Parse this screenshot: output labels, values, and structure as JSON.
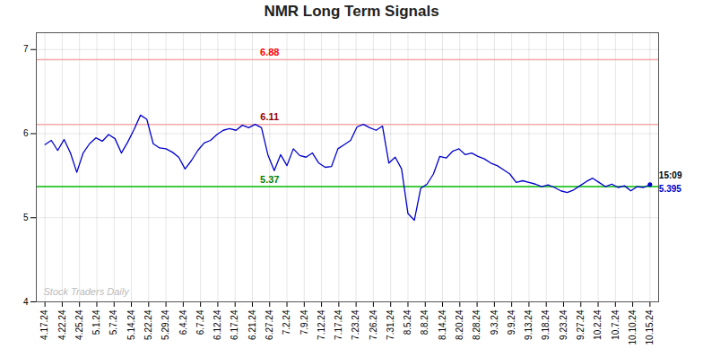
{
  "chart_data": {
    "type": "line",
    "title": "NMR Long Term Signals",
    "x": [
      0,
      0.368421,
      0.736842,
      1.105263,
      1.473684,
      1.842105,
      2.210526,
      2.578947,
      2.947368,
      3.315789,
      3.684211,
      4.052632,
      4.421053,
      4.789474,
      5.157895,
      5.526316,
      5.894737,
      6.263158,
      6.631579,
      7,
      7.368421,
      7.736842,
      8.105263,
      8.473684,
      8.842105,
      9.210526,
      9.578947,
      9.947368,
      10.315789,
      10.684211,
      11.052632,
      11.421053,
      11.789474,
      12.157895,
      12.526316,
      12.894737,
      13.263158,
      13.631579,
      14,
      14.368421,
      14.736842,
      15.105263,
      15.473684,
      15.842105,
      16.210526,
      16.578947,
      16.947368,
      17.315789,
      17.684211,
      18.052632,
      18.421053,
      18.789474,
      19.157895,
      19.526316,
      19.894737,
      20.263158,
      20.631579,
      21,
      21.368421,
      21.736842,
      22.105263,
      22.473684,
      22.842105,
      23.210526,
      23.578947,
      23.947368,
      24.315789,
      24.684211,
      25.052632,
      25.421053,
      25.789474,
      26.157895,
      26.526316,
      26.894737,
      27.263158,
      27.631579,
      28,
      28.368421,
      28.736842,
      29.105263,
      29.473684,
      29.842105,
      30.210526,
      30.578947,
      30.947368,
      31.315789,
      31.684211,
      32.052632,
      32.421053,
      32.789474,
      33.157895,
      33.526316,
      33.894737,
      34.263158,
      34.631579,
      35
    ],
    "values": [
      5.87,
      5.92,
      5.8,
      5.93,
      5.77,
      5.54,
      5.77,
      5.88,
      5.95,
      5.91,
      5.99,
      5.94,
      5.77,
      5.9,
      6.05,
      6.22,
      6.17,
      5.88,
      5.83,
      5.82,
      5.78,
      5.72,
      5.58,
      5.68,
      5.8,
      5.89,
      5.92,
      5.99,
      6.04,
      6.06,
      6.04,
      6.1,
      6.07,
      6.11,
      6.07,
      5.75,
      5.56,
      5.75,
      5.62,
      5.82,
      5.74,
      5.72,
      5.77,
      5.65,
      5.6,
      5.61,
      5.82,
      5.87,
      5.92,
      6.08,
      6.11,
      6.07,
      6.04,
      6.09,
      5.65,
      5.72,
      5.58,
      5.05,
      4.97,
      5.35,
      5.4,
      5.52,
      5.73,
      5.71,
      5.79,
      5.82,
      5.75,
      5.77,
      5.73,
      5.7,
      5.65,
      5.62,
      5.57,
      5.52,
      5.42,
      5.44,
      5.42,
      5.4,
      5.37,
      5.39,
      5.36,
      5.32,
      5.3,
      5.33,
      5.38,
      5.43,
      5.47,
      5.42,
      5.37,
      5.4,
      5.36,
      5.38,
      5.32,
      5.37,
      5.36,
      5.395
    ],
    "color": "#0000cc",
    "xlim": [
      -0.5,
      35.5
    ],
    "xticks": [
      {
        "value": 0,
        "label": "4.17.24"
      },
      {
        "value": 1,
        "label": "4.22.24"
      },
      {
        "value": 2,
        "label": "4.25.24"
      },
      {
        "value": 3,
        "label": "5.1.24"
      },
      {
        "value": 4,
        "label": "5.7.24"
      },
      {
        "value": 5,
        "label": "5.14.24"
      },
      {
        "value": 6,
        "label": "5.22.24"
      },
      {
        "value": 7,
        "label": "5.29.24"
      },
      {
        "value": 8,
        "label": "6.4.24"
      },
      {
        "value": 9,
        "label": "6.7.24"
      },
      {
        "value": 10,
        "label": "6.12.24"
      },
      {
        "value": 11,
        "label": "6.17.24"
      },
      {
        "value": 12,
        "label": "6.21.24"
      },
      {
        "value": 13,
        "label": "6.27.24"
      },
      {
        "value": 14,
        "label": "7.2.24"
      },
      {
        "value": 15,
        "label": "7.9.24"
      },
      {
        "value": 16,
        "label": "7.12.24"
      },
      {
        "value": 17,
        "label": "7.17.24"
      },
      {
        "value": 18,
        "label": "7.23.24"
      },
      {
        "value": 19,
        "label": "7.26.24"
      },
      {
        "value": 20,
        "label": "7.31.24"
      },
      {
        "value": 21,
        "label": "8.5.24"
      },
      {
        "value": 22,
        "label": "8.8.24"
      },
      {
        "value": 23,
        "label": "8.14.24"
      },
      {
        "value": 24,
        "label": "8.20.24"
      },
      {
        "value": 25,
        "label": "8.28.24"
      },
      {
        "value": 26,
        "label": "9.3.24"
      },
      {
        "value": 27,
        "label": "9.9.24"
      },
      {
        "value": 28,
        "label": "9.13.24"
      },
      {
        "value": 29,
        "label": "9.18.24"
      },
      {
        "value": 30,
        "label": "9.23.24"
      },
      {
        "value": 31,
        "label": "9.27.24"
      },
      {
        "value": 32,
        "label": "10.2.24"
      },
      {
        "value": 33,
        "label": "10.7.24"
      },
      {
        "value": 34,
        "label": "10.10.24"
      },
      {
        "value": 35,
        "label": "10.15.24"
      }
    ],
    "ylim": [
      4.0,
      7.2
    ],
    "yticks": [
      4,
      5,
      6,
      7
    ],
    "grid": true,
    "hlines": [
      {
        "value": 6.88,
        "color": "#f4a9a8"
      },
      {
        "value": 6.11,
        "color": "#f4a9a8"
      },
      {
        "value": 5.37,
        "color": "#00bb00"
      }
    ],
    "annotations": [
      {
        "text": "6.88",
        "y": 6.88,
        "color": "red"
      },
      {
        "text": "6.11",
        "y": 6.11,
        "color": "#990000"
      },
      {
        "text": "5.37",
        "y": 5.37,
        "color": "green"
      },
      {
        "text": "15:09",
        "x": 35,
        "y": 5.395,
        "color": "black"
      },
      {
        "text": "5.395",
        "x": 35,
        "y": 5.395,
        "color": "#0000cc"
      },
      {
        "text": "Stock Traders Daily",
        "color": "#bbbbbb"
      }
    ]
  }
}
